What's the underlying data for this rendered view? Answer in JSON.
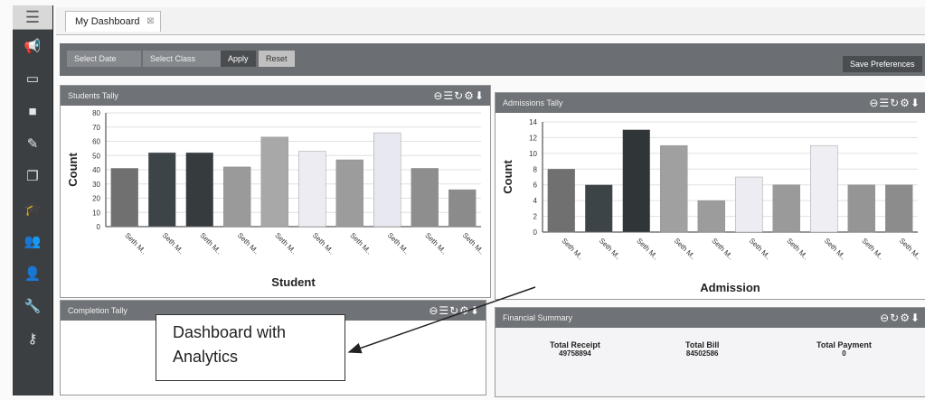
{
  "tab": {
    "label": "My Dashboard"
  },
  "filters": {
    "date": "Select Date",
    "class": "Select Class",
    "apply": "Apply",
    "reset": "Reset",
    "prefs": "Save Preferences"
  },
  "panels": {
    "students": {
      "title": "Students Tally"
    },
    "admissions": {
      "title": "Admissions Tally"
    },
    "completion": {
      "title": "Completion Tally"
    },
    "financial": {
      "title": "Financial Summary"
    }
  },
  "financial": {
    "cols": [
      {
        "label": "Total Receipt",
        "value": "49758894"
      },
      {
        "label": "Total Bill",
        "value": "84502586"
      },
      {
        "label": "Total Payment",
        "value": "0"
      }
    ]
  },
  "callout": {
    "line1": "Dashboard with",
    "line2": "Analytics"
  },
  "chart_data": [
    {
      "type": "bar",
      "xlabel": "Student",
      "ylabel": "Count",
      "ylim": [
        0,
        80
      ],
      "yticks": [
        "0",
        "10",
        "20",
        "30",
        "40",
        "50",
        "60",
        "70",
        "80"
      ],
      "categories": [
        "Seth M..",
        "Seth M..",
        "Seth M..",
        "Seth M..",
        "Seth M..",
        "Seth M..",
        "Seth M..",
        "Seth M..",
        "Seth M..",
        "Seth M.."
      ],
      "values": [
        41,
        52,
        52,
        42,
        63,
        53,
        47,
        66,
        41,
        26
      ],
      "colors": [
        "#707070",
        "#3d4447",
        "#363b3e",
        "#9a9a9a",
        "#a8a8a8",
        "#ececf2",
        "#9c9c9c",
        "#e8e8f0",
        "#8e8e8e",
        "#8b8b8b"
      ]
    },
    {
      "type": "bar",
      "xlabel": "Admission",
      "ylabel": "Count",
      "ylim": [
        0,
        14
      ],
      "yticks": [
        "0",
        "2",
        "4",
        "6",
        "8",
        "10",
        "12",
        "14"
      ],
      "categories": [
        "Seth M..",
        "Seth M..",
        "Seth M..",
        "Seth M..",
        "Seth M..",
        "Seth M..",
        "Seth M..",
        "Seth M..",
        "Seth M..",
        "Seth M.."
      ],
      "values": [
        8,
        6,
        13,
        11,
        4,
        7,
        6,
        11,
        6,
        6
      ],
      "colors": [
        "#707070",
        "#3d4447",
        "#303538",
        "#a0a0a0",
        "#9c9c9c",
        "#ececf2",
        "#9a9a9a",
        "#eeeef3",
        "#959595",
        "#8c8c8c"
      ]
    }
  ],
  "icons": [
    "menu-icon",
    "megaphone-icon",
    "card-icon",
    "book-icon",
    "edit-icon",
    "window-icon",
    "graduation-icon",
    "users-icon",
    "user-icon",
    "wrench-icon",
    "key-icon"
  ]
}
